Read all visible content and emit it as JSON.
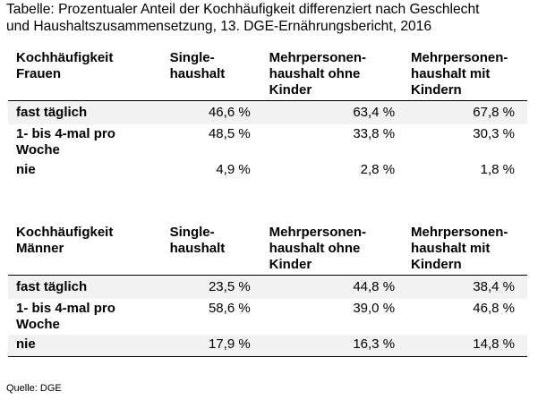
{
  "caption": {
    "line1": "Tabelle: Prozentualer Anteil der Kochhäufigkeit differenziert nach Geschlecht",
    "line2": "und Haushaltszusammensetzung, 13. DGE-Ernährungsbericht, 2016"
  },
  "tables": [
    {
      "header": [
        "Kochhäufigkeit\nFrauen",
        "Single-\nhaushalt",
        "Mehrpersonen-\nhaushalt ohne\nKinder",
        "Mehrpersonen-\nhaushalt mit\nKindern"
      ],
      "rows": [
        {
          "label": "fast täglich",
          "values": [
            "46,6 %",
            "63,4 %",
            "67,8 %"
          ]
        },
        {
          "label": "1- bis 4-mal pro\nWoche",
          "values": [
            "48,5 %",
            "33,8 %",
            "30,3 %"
          ]
        },
        {
          "label": "nie",
          "values": [
            "4,9 %",
            "2,8 %",
            "1,8 %"
          ]
        }
      ]
    },
    {
      "header": [
        "Kochhäufigkeit\nMänner",
        "Single-\nhaushalt",
        "Mehrpersonen-\nhaushalt ohne\nKinder",
        "Mehrpersonen-\nhaushalt mit\nKindern"
      ],
      "rows": [
        {
          "label": "fast täglich",
          "values": [
            "23,5 %",
            "44,8 %",
            "38,4 %"
          ]
        },
        {
          "label": "1- bis 4-mal pro\nWoche",
          "values": [
            "58,6 %",
            "39,0 %",
            "46,8 %"
          ]
        },
        {
          "label": "nie",
          "values": [
            "17,9 %",
            "16,3 %",
            "14,8 %"
          ]
        }
      ]
    }
  ],
  "source": "Quelle: DGE"
}
